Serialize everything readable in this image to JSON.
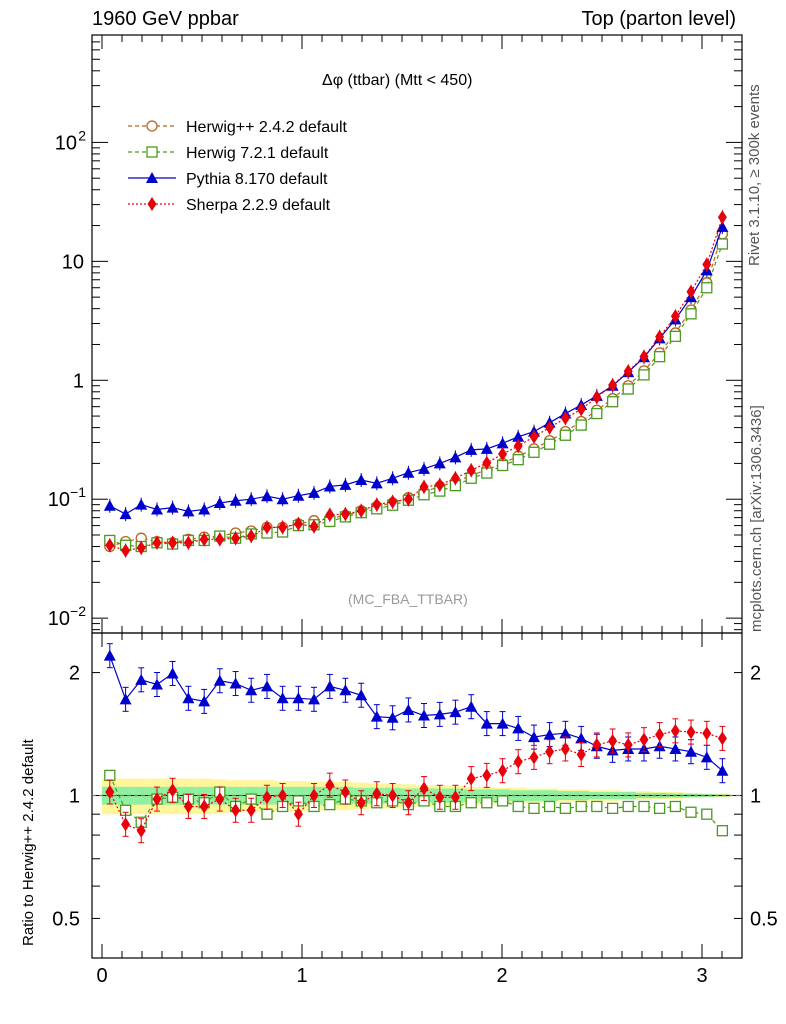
{
  "header": {
    "left": "1960 GeV ppbar",
    "right": "Top (parton level)"
  },
  "side_labels": {
    "rivet": "Rivet 3.1.10, ≥ 300k events",
    "mcplots": "mcplots.cern.ch [arXiv:1306.3436]"
  },
  "chart_data": [
    {
      "type": "line",
      "panel": "main",
      "title": "Δφ (ttbar) (Mtt < 450)",
      "analysis": "(MC_FBA_TTBAR)",
      "yscale": "log",
      "xlim": [
        -0.05,
        3.2
      ],
      "ylim": [
        0.0075,
        800
      ],
      "xticks": [
        0,
        1,
        2,
        3
      ],
      "yticks": [
        {
          "v": 0.01,
          "label": "10",
          "exp": "−2"
        },
        {
          "v": 0.1,
          "label": "10",
          "exp": "−1"
        },
        {
          "v": 1,
          "label": "1",
          "exp": ""
        },
        {
          "v": 10,
          "label": "10",
          "exp": ""
        },
        {
          "v": 100,
          "label": "10",
          "exp": "2"
        }
      ],
      "legend_position": "top-left",
      "x": [
        0.039,
        0.118,
        0.196,
        0.275,
        0.353,
        0.432,
        0.511,
        0.589,
        0.668,
        0.746,
        0.825,
        0.903,
        0.982,
        1.06,
        1.139,
        1.217,
        1.296,
        1.374,
        1.453,
        1.532,
        1.61,
        1.689,
        1.767,
        1.846,
        1.924,
        2.003,
        2.081,
        2.16,
        2.238,
        2.317,
        2.396,
        2.474,
        2.553,
        2.631,
        2.71,
        2.788,
        2.867,
        2.945,
        3.024,
        3.102
      ],
      "series": [
        {
          "name": "Herwig++ 2.4.2 default",
          "color": "#b5651d",
          "marker": "open-circle",
          "dash": "4,3",
          "values": [
            0.04,
            0.044,
            0.047,
            0.044,
            0.043,
            0.046,
            0.048,
            0.049,
            0.052,
            0.054,
            0.058,
            0.058,
            0.062,
            0.066,
            0.069,
            0.073,
            0.08,
            0.087,
            0.093,
            0.103,
            0.115,
            0.128,
            0.14,
            0.158,
            0.177,
            0.2,
            0.23,
            0.265,
            0.31,
            0.37,
            0.45,
            0.56,
            0.7,
            0.9,
            1.2,
            1.7,
            2.5,
            3.9,
            6.6,
            17.0
          ]
        },
        {
          "name": "Herwig 7.2.1 default",
          "color": "#4a9a1e",
          "marker": "open-square",
          "dash": "4,3",
          "values": [
            0.045,
            0.041,
            0.04,
            0.043,
            0.042,
            0.045,
            0.045,
            0.049,
            0.047,
            0.051,
            0.052,
            0.053,
            0.06,
            0.061,
            0.065,
            0.071,
            0.077,
            0.083,
            0.089,
            0.098,
            0.109,
            0.117,
            0.13,
            0.15,
            0.166,
            0.192,
            0.215,
            0.248,
            0.29,
            0.345,
            0.42,
            0.525,
            0.66,
            0.845,
            1.11,
            1.58,
            2.34,
            3.62,
            6.0,
            14.0
          ]
        },
        {
          "name": "Pythia 8.170 default",
          "color": "#0000cc",
          "marker": "filled-triangle",
          "dash": "",
          "values": [
            0.088,
            0.075,
            0.09,
            0.082,
            0.085,
            0.079,
            0.082,
            0.093,
            0.097,
            0.1,
            0.106,
            0.1,
            0.107,
            0.113,
            0.128,
            0.132,
            0.145,
            0.136,
            0.15,
            0.167,
            0.18,
            0.2,
            0.225,
            0.26,
            0.265,
            0.295,
            0.335,
            0.37,
            0.44,
            0.525,
            0.62,
            0.74,
            0.9,
            1.17,
            1.56,
            2.25,
            3.25,
            5.0,
            8.4,
            19.5
          ]
        },
        {
          "name": "Sherpa 2.2.9 default",
          "color": "#e8000b",
          "marker": "filled-diamond",
          "dash": "2,2",
          "values": [
            0.041,
            0.037,
            0.039,
            0.043,
            0.043,
            0.043,
            0.046,
            0.046,
            0.047,
            0.049,
            0.058,
            0.058,
            0.062,
            0.059,
            0.074,
            0.075,
            0.08,
            0.09,
            0.095,
            0.1,
            0.127,
            0.132,
            0.15,
            0.175,
            0.202,
            0.24,
            0.28,
            0.335,
            0.4,
            0.48,
            0.57,
            0.72,
            0.91,
            1.19,
            1.58,
            2.32,
            3.45,
            5.55,
            9.4,
            23.5
          ]
        }
      ]
    },
    {
      "type": "line",
      "panel": "ratio",
      "ylabel": "Ratio to Herwig++ 2.4.2 default",
      "yscale": "log",
      "xlim": [
        -0.05,
        3.2
      ],
      "ylim": [
        0.4,
        2.5
      ],
      "xticks": [
        0,
        1,
        2,
        3
      ],
      "yticks": [
        0.5,
        1,
        2
      ],
      "reference": 1.0,
      "band_inner": [
        0.05,
        0.05,
        0.05,
        0.05,
        0.05,
        0.05,
        0.05,
        0.05,
        0.05,
        0.05,
        0.05,
        0.05,
        0.05,
        0.05,
        0.05,
        0.05,
        0.045,
        0.045,
        0.045,
        0.04,
        0.04,
        0.04,
        0.04,
        0.035,
        0.035,
        0.035,
        0.03,
        0.03,
        0.03,
        0.025,
        0.025,
        0.02,
        0.02,
        0.02,
        0.015,
        0.015,
        0.012,
        0.01,
        0.008,
        0.006
      ],
      "band_outer": [
        0.1,
        0.1,
        0.1,
        0.1,
        0.1,
        0.1,
        0.1,
        0.095,
        0.09,
        0.09,
        0.09,
        0.085,
        0.085,
        0.08,
        0.08,
        0.08,
        0.075,
        0.07,
        0.07,
        0.065,
        0.06,
        0.06,
        0.055,
        0.05,
        0.05,
        0.045,
        0.045,
        0.04,
        0.04,
        0.035,
        0.035,
        0.03,
        0.03,
        0.025,
        0.025,
        0.02,
        0.02,
        0.015,
        0.012,
        0.01
      ],
      "series": [
        {
          "name": "Herwig 7.2.1 default",
          "values": [
            1.12,
            0.92,
            0.86,
            0.98,
            0.99,
            0.98,
            0.96,
            1.02,
            0.94,
            0.98,
            0.9,
            0.94,
            0.97,
            0.94,
            0.95,
            0.98,
            0.97,
            0.96,
            0.97,
            0.95,
            0.97,
            0.94,
            0.94,
            0.96,
            0.96,
            0.97,
            0.94,
            0.93,
            0.94,
            0.93,
            0.94,
            0.94,
            0.93,
            0.94,
            0.94,
            0.93,
            0.94,
            0.91,
            0.9,
            0.82
          ]
        },
        {
          "name": "Pythia 8.170 default",
          "values": [
            2.2,
            1.72,
            1.92,
            1.87,
            1.99,
            1.73,
            1.7,
            1.91,
            1.88,
            1.81,
            1.85,
            1.73,
            1.73,
            1.72,
            1.85,
            1.81,
            1.76,
            1.56,
            1.55,
            1.62,
            1.57,
            1.58,
            1.6,
            1.65,
            1.5,
            1.5,
            1.46,
            1.39,
            1.41,
            1.42,
            1.38,
            1.32,
            1.29,
            1.3,
            1.3,
            1.32,
            1.3,
            1.28,
            1.24,
            1.15
          ]
        },
        {
          "name": "Sherpa 2.2.9 default",
          "values": [
            1.02,
            0.85,
            0.82,
            0.98,
            1.03,
            0.94,
            0.94,
            0.98,
            0.92,
            0.92,
            0.99,
            1.0,
            0.9,
            1.0,
            1.06,
            1.02,
            0.96,
            1.01,
            1.0,
            0.96,
            1.04,
            0.99,
            0.99,
            1.1,
            1.12,
            1.15,
            1.21,
            1.24,
            1.28,
            1.3,
            1.26,
            1.33,
            1.36,
            1.33,
            1.37,
            1.41,
            1.44,
            1.43,
            1.42,
            1.38
          ]
        }
      ]
    }
  ]
}
